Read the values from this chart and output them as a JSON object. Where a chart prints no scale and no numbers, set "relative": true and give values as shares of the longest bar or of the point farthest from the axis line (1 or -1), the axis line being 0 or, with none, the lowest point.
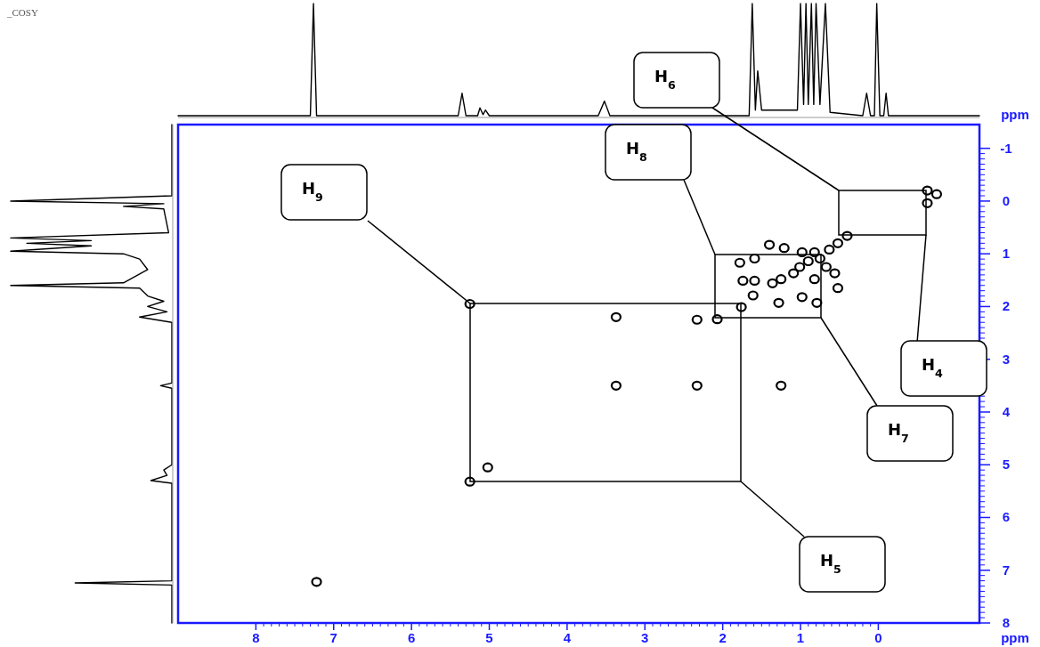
{
  "chart_data": [
    {
      "type": "scatter",
      "xlabel": "ppm",
      "ylabel": "ppm",
      "xlim": [
        9.0,
        -1.3
      ],
      "ylim": [
        8,
        -1.45
      ],
      "xticks": [
        8,
        7,
        6,
        5,
        4,
        3,
        2,
        1,
        0
      ],
      "yticks": [
        -1,
        0,
        1,
        2,
        3,
        4,
        5,
        6,
        7,
        8
      ],
      "marker": "circle",
      "grid": false,
      "series": [
        {
          "color": "#000000",
          "x": [
            7.22,
            5.25,
            5.25,
            5.02,
            3.37,
            3.37,
            2.33,
            2.33,
            1.25,
            2.07,
            1.78,
            1.59,
            1.74,
            1.59,
            1.61,
            1.76,
            1.28,
            1.25,
            1.36,
            1.09,
            1.01,
            0.9,
            0.98,
            1.21,
            1.4,
            0.82,
            0.75,
            0.63,
            0.52,
            0.4,
            0.82,
            0.98,
            0.79,
            0.67,
            0.56,
            0.52,
            -0.63,
            -0.75,
            -0.63
          ],
          "values": [
            7.22,
            1.95,
            5.32,
            5.05,
            2.2,
            3.5,
            2.25,
            3.5,
            3.5,
            2.24,
            1.17,
            1.09,
            1.51,
            1.51,
            1.79,
            2.01,
            1.93,
            1.48,
            1.56,
            1.37,
            1.25,
            1.14,
            0.97,
            0.89,
            0.83,
            0.97,
            1.09,
            0.92,
            0.8,
            0.66,
            1.48,
            1.82,
            1.93,
            1.25,
            1.37,
            1.65,
            0.04,
            -0.13,
            -0.2
          ]
        }
      ],
      "annotations": [
        "H$_{9}$",
        "H$_{5}$",
        "H$_{8}$",
        "H$_{7}$",
        "H$_{6}$",
        "H$_{4}$"
      ]
    },
    {
      "type": "line",
      "relative": true,
      "xlim": [
        9.0,
        -1.3
      ],
      "xticks": [
        8,
        7,
        6,
        5,
        4,
        3,
        2,
        1,
        0
      ],
      "tick_labels": false,
      "series": [
        {
          "color": "#000000",
          "x": [
            9,
            7.3,
            7.26,
            7.22,
            5.4,
            5.35,
            5.3,
            5.15,
            5.12,
            5.08,
            5.05,
            5.0,
            3.6,
            3.52,
            3.45,
            1.66,
            1.62,
            1.58,
            1.55,
            1.5,
            1.04,
            1.0,
            0.96,
            0.93,
            0.9,
            0.86,
            0.83,
            0.8,
            0.75,
            0.68,
            0.62,
            0.2,
            0.15,
            0.1,
            0.05,
            0.02,
            -0.02,
            -0.07,
            -0.1,
            -0.13,
            -1.3
          ],
          "values": [
            0,
            0,
            1,
            0,
            0,
            0.2,
            0,
            0,
            0.07,
            0.01,
            0.05,
            0,
            0,
            0.13,
            0,
            0,
            1,
            0.05,
            0.4,
            0.05,
            0.05,
            1,
            0.1,
            1,
            0.1,
            1,
            0.1,
            1,
            0.1,
            1,
            0.03,
            0,
            0.2,
            0,
            0,
            1,
            0,
            0,
            0.2,
            0,
            0
          ]
        }
      ]
    },
    {
      "type": "line",
      "title": "_COSY",
      "relative": true,
      "orientation": "horizontal",
      "ylim": [
        8,
        -1.45
      ],
      "yticks": [
        -1,
        0,
        1,
        2,
        3,
        4,
        5,
        6,
        7,
        8
      ],
      "tick_labels": false,
      "series": [
        {
          "color": "#000000",
          "x": [
            -1.45,
            -0.1,
            0.0,
            0.05,
            0.1,
            0.15,
            0.6,
            0.7,
            0.75,
            0.8,
            0.85,
            0.95,
            1.0,
            1.1,
            1.3,
            1.55,
            1.6,
            1.65,
            1.8,
            1.9,
            2.0,
            2.1,
            2.2,
            2.3,
            3.45,
            3.5,
            3.55,
            5.0,
            5.1,
            5.2,
            5.3,
            5.35,
            7.2,
            7.24,
            7.28,
            8
          ],
          "values": [
            0,
            0,
            -1,
            -0.05,
            -0.3,
            -0.05,
            -0.02,
            -1,
            -0.5,
            -0.9,
            -0.5,
            -1,
            -0.3,
            -0.2,
            -0.15,
            -0.3,
            -1,
            -0.2,
            -0.15,
            -0.05,
            -0.15,
            -0.03,
            -0.2,
            0,
            0,
            -0.07,
            0,
            0,
            -0.05,
            -0.03,
            -0.13,
            0,
            0,
            -0.6,
            0,
            0
          ]
        }
      ]
    }
  ]
}
